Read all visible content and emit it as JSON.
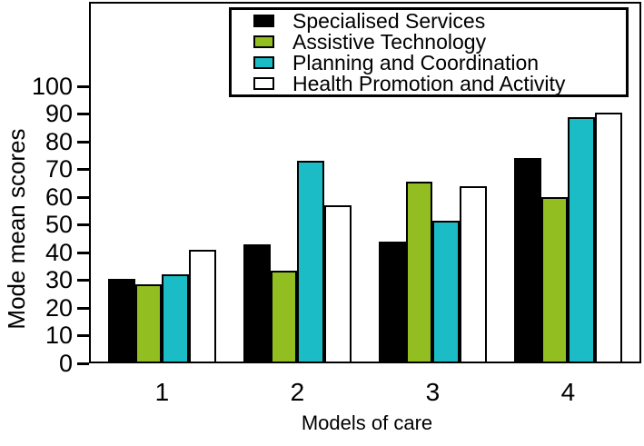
{
  "chart_data": {
    "type": "bar",
    "title": "",
    "xlabel": "Models of care",
    "ylabel": "Mode mean scores",
    "categories": [
      "1",
      "2",
      "3",
      "4"
    ],
    "series": [
      {
        "name": "Specialised Services",
        "color": "#000000",
        "values": [
          30.5,
          43,
          44,
          74
        ]
      },
      {
        "name": "Assistive Technology",
        "color": "#92be21",
        "values": [
          28.5,
          33.5,
          65.5,
          60
        ]
      },
      {
        "name": "Planning and Coordination",
        "color": "#1bbcc6",
        "values": [
          32,
          73,
          51.5,
          89
        ]
      },
      {
        "name": "Health Promotion and Activity",
        "color": "#ffffff",
        "values": [
          41,
          57,
          64,
          90.5
        ]
      }
    ],
    "ylim": [
      0,
      100
    ],
    "yticks": [
      0,
      10,
      20,
      30,
      40,
      50,
      60,
      70,
      80,
      90,
      100
    ],
    "grid": false,
    "legend_position": "top",
    "bar_outline_color": "#000000",
    "axis_color": "#000000"
  }
}
